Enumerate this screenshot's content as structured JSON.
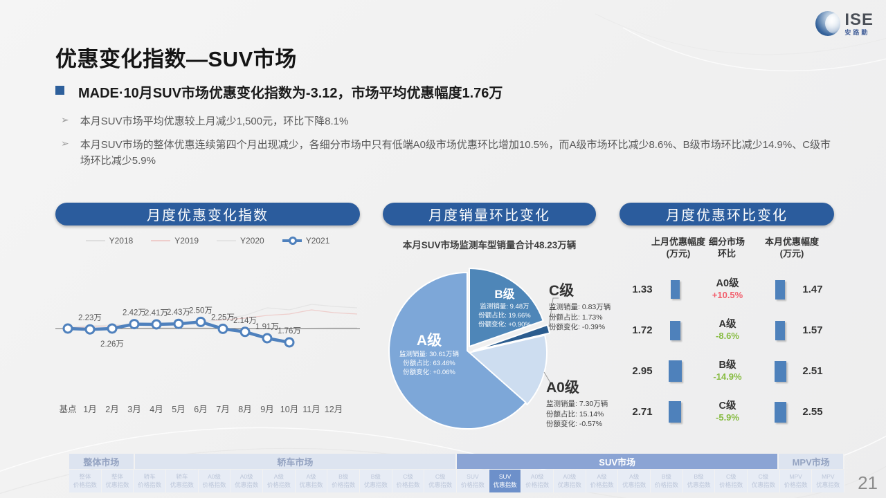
{
  "logo": {
    "text": "ISE",
    "subtext": "安路勤"
  },
  "title": "优惠变化指数—SUV市场",
  "bullets": {
    "main": "MADE·10月SUV市场优惠变化指数为-3.12，市场平均优惠幅度1.76万",
    "sub": [
      "本月SUV市场平均优惠较上月减少1,500元，环比下降8.1%",
      "本月SUV市场的整体优惠连续第四个月出现减少，各细分市场中只有低端A0级市场优惠环比增加10.5%，而A级市场环比减少8.6%、B级市场环比减少14.9%、C级市场环比减少5.9%"
    ]
  },
  "panels": {
    "line": {
      "header": "月度优惠变化指数"
    },
    "pie": {
      "header": "月度销量环比变化",
      "subtitle": "本月SUV市场监测车型销量合计48.23万辆"
    },
    "comparison": {
      "header": "月度优惠环比变化",
      "col_headers": [
        {
          "l1": "上月优惠幅度",
          "l2": "(万元)"
        },
        {
          "l1": "细分市场",
          "l2": "环比"
        },
        {
          "l1": "本月优惠幅度",
          "l2": "(万元)"
        }
      ]
    }
  },
  "chart_data": [
    {
      "type": "line",
      "title": "月度优惠变化指数",
      "x": [
        "基点",
        "1月",
        "2月",
        "3月",
        "4月",
        "5月",
        "6月",
        "7月",
        "8月",
        "9月",
        "10月",
        "11月",
        "12月"
      ],
      "series": [
        {
          "name": "Y2018",
          "color": "#dedede",
          "values": null
        },
        {
          "name": "Y2019",
          "color": "#eecdcb",
          "values": null
        },
        {
          "name": "Y2020",
          "color": "#e4e4e4",
          "values": null
        },
        {
          "name": "Y2021",
          "color": "#4f81bd",
          "values": [
            2.26,
            2.23,
            2.26,
            2.42,
            2.41,
            2.43,
            2.5,
            2.25,
            2.14,
            1.91,
            1.76
          ],
          "labels": [
            "",
            "2.23万",
            "2.26万",
            "2.42万",
            "2.41万",
            "2.43万",
            "2.50万",
            "2.25万",
            "2.14万",
            "1.91万",
            "1.76万"
          ],
          "label_below_index": 2
        }
      ],
      "baseline": 2.26,
      "legend_position": "top",
      "grid": false
    },
    {
      "type": "pie",
      "title": "月度销量环比变化",
      "subtitle": "本月SUV市场监测车型销量合计48.23万辆",
      "field_labels": {
        "volume": "监测销量:",
        "share": "份额占比:",
        "change": "份额变化:"
      },
      "slices": [
        {
          "name": "B级",
          "value": 19.66,
          "color": "#4e86b8",
          "volume": "9.48万",
          "share": "19.66%",
          "change": "+0.90%",
          "label_style": "inside"
        },
        {
          "name": "C级",
          "value": 1.73,
          "color": "#2b5c8e",
          "volume": "0.83万辆",
          "share": "1.73%",
          "change": "-0.39%",
          "label_style": "outside"
        },
        {
          "name": "A0级",
          "value": 15.14,
          "color": "#cdddf0",
          "volume": "7.30万辆",
          "share": "15.14%",
          "change": "-0.57%",
          "label_style": "outside"
        },
        {
          "name": "A级",
          "value": 63.46,
          "color": "#7da7d8",
          "volume": "30.61万辆",
          "share": "63.46%",
          "change": "+0.06%",
          "label_style": "inside"
        }
      ]
    },
    {
      "type": "table",
      "title": "月度优惠环比变化",
      "columns": [
        "上月优惠幅度(万元)",
        "细分市场环比",
        "本月优惠幅度(万元)"
      ],
      "rows": [
        {
          "market": "A0级",
          "prev": "1.33",
          "change": "+10.5%",
          "curr": "1.47",
          "trend": "up"
        },
        {
          "market": "A级",
          "prev": "1.72",
          "change": "-8.6%",
          "curr": "1.57",
          "trend": "down"
        },
        {
          "market": "B级",
          "prev": "2.95",
          "change": "-14.9%",
          "curr": "2.51",
          "trend": "down"
        },
        {
          "market": "C级",
          "prev": "2.71",
          "change": "-5.9%",
          "curr": "2.55",
          "trend": "down"
        }
      ]
    }
  ],
  "bottom_nav": {
    "groups": [
      {
        "label": "整体市场",
        "span": 2,
        "active": false
      },
      {
        "label": "轿车市场",
        "span": 10,
        "active": false
      },
      {
        "label": "SUV市场",
        "span": 10,
        "active": true
      },
      {
        "label": "MPV市场",
        "span": 2,
        "active": false
      }
    ],
    "cells": [
      {
        "l1": "整体",
        "l2": "价格指数",
        "active": false
      },
      {
        "l1": "整体",
        "l2": "优惠指数",
        "active": false
      },
      {
        "l1": "轿车",
        "l2": "价格指数",
        "active": false
      },
      {
        "l1": "轿车",
        "l2": "优惠指数",
        "active": false
      },
      {
        "l1": "A0级",
        "l2": "价格指数",
        "active": false
      },
      {
        "l1": "A0级",
        "l2": "优惠指数",
        "active": false
      },
      {
        "l1": "A级",
        "l2": "价格指数",
        "active": false
      },
      {
        "l1": "A级",
        "l2": "优惠指数",
        "active": false
      },
      {
        "l1": "B级",
        "l2": "价格指数",
        "active": false
      },
      {
        "l1": "B级",
        "l2": "优惠指数",
        "active": false
      },
      {
        "l1": "C级",
        "l2": "价格指数",
        "active": false
      },
      {
        "l1": "C级",
        "l2": "优惠指数",
        "active": false
      },
      {
        "l1": "SUV",
        "l2": "价格指数",
        "active": false
      },
      {
        "l1": "SUV",
        "l2": "优惠指数",
        "active": true
      },
      {
        "l1": "A0级",
        "l2": "价格指数",
        "active": false
      },
      {
        "l1": "A0级",
        "l2": "优惠指数",
        "active": false
      },
      {
        "l1": "A级",
        "l2": "价格指数",
        "active": false
      },
      {
        "l1": "A级",
        "l2": "优惠指数",
        "active": false
      },
      {
        "l1": "B级",
        "l2": "价格指数",
        "active": false
      },
      {
        "l1": "B级",
        "l2": "优惠指数",
        "active": false
      },
      {
        "l1": "C级",
        "l2": "价格指数",
        "active": false
      },
      {
        "l1": "C级",
        "l2": "优惠指数",
        "active": false
      },
      {
        "l1": "MPV",
        "l2": "价格指数",
        "active": false
      },
      {
        "l1": "MPV",
        "l2": "优惠指数",
        "active": false
      }
    ]
  },
  "page_number": "21",
  "colors": {
    "accent": "#2b5c9d",
    "bar": "#4e81bb",
    "up_red": "#f25f6d",
    "down_green": "#86bb40",
    "line_2021": "#4f81bd"
  }
}
